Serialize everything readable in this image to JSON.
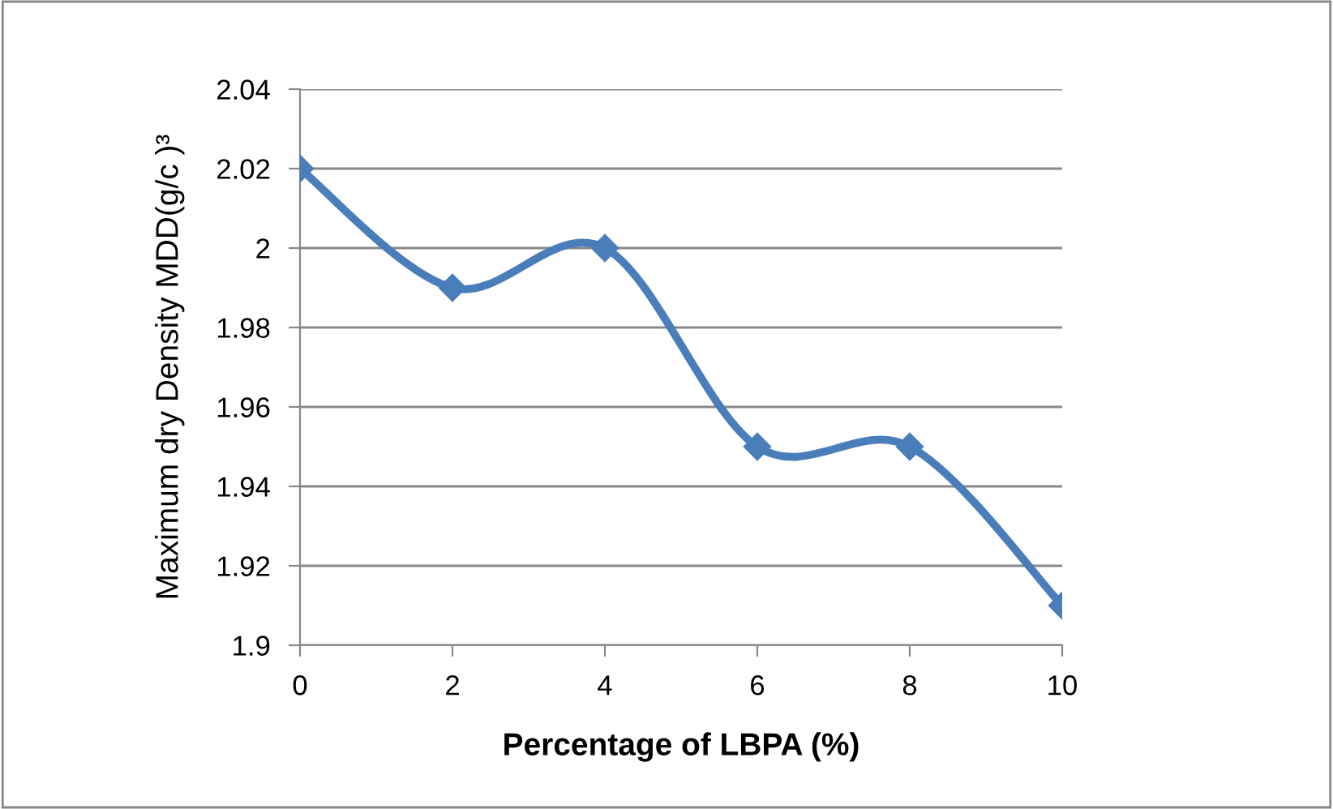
{
  "chart_data": {
    "type": "line",
    "xlabel": "Percentage of LBPA (%)",
    "ylabel": "Maximum dry Density MDD(g/c )³",
    "x": [
      0,
      2,
      4,
      6,
      8,
      10
    ],
    "series": [
      {
        "color": "#4a7ebb",
        "values": [
          2.02,
          1.99,
          2.0,
          1.95,
          1.95,
          1.91
        ]
      }
    ],
    "xlim": [
      0,
      10
    ],
    "xticks": [
      0,
      2,
      4,
      6,
      8,
      10
    ],
    "ylim": [
      1.9,
      2.04
    ],
    "yticks": [
      1.9,
      1.92,
      1.94,
      1.96,
      1.98,
      2,
      2.02,
      2.04
    ],
    "grid": "y",
    "marker": "diamond",
    "line_style": "solid",
    "legend": false
  }
}
